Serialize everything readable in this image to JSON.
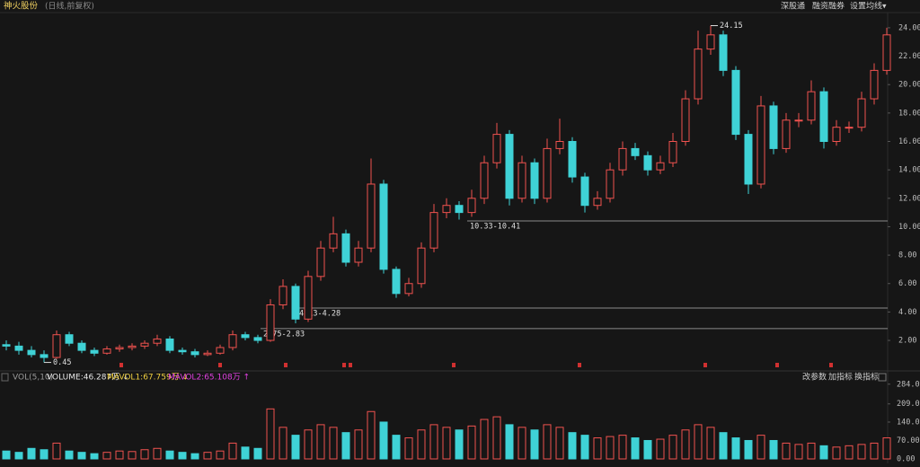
{
  "header": {
    "title": "神火股份",
    "subtitle": "(日线,前复权)",
    "menu": [
      "深股通",
      "融资融券",
      "设置均线▾"
    ]
  },
  "chart_data": [
    {
      "type": "candlestick",
      "up_color": "#f0524f",
      "down_color": "#3fd2d6",
      "open": [
        1.7,
        1.6,
        1.3,
        1.0,
        0.8,
        2.4,
        1.8,
        1.3,
        1.1,
        1.4,
        1.5,
        1.6,
        1.8,
        2.1,
        1.3,
        1.2,
        1.0,
        1.1,
        1.5,
        2.4,
        2.2,
        2.0,
        4.5,
        5.8,
        3.5,
        6.5,
        8.5,
        9.5,
        7.5,
        8.5,
        13.0,
        7.0,
        5.3,
        6.0,
        8.5,
        11.0,
        11.5,
        11.0,
        12.0,
        14.5,
        16.5,
        12.0,
        14.5,
        12.0,
        15.5,
        16.0,
        13.5,
        11.5,
        12.0,
        14.0,
        15.5,
        15.0,
        14.0,
        14.5,
        16.0,
        19.0,
        22.5,
        23.5,
        21.0,
        16.5,
        13.0,
        18.5,
        15.5,
        17.5,
        17.5,
        19.5,
        16.0,
        17.0,
        17.0,
        19.0,
        21.0
      ],
      "high": [
        2.0,
        1.9,
        1.6,
        1.3,
        2.7,
        2.6,
        2.0,
        1.5,
        1.6,
        1.7,
        1.8,
        2.0,
        2.4,
        2.3,
        1.5,
        1.4,
        1.3,
        1.7,
        2.7,
        2.6,
        2.4,
        4.9,
        6.3,
        6.0,
        6.9,
        9.0,
        10.7,
        9.8,
        9.0,
        14.8,
        13.3,
        7.2,
        6.4,
        8.9,
        11.6,
        12.0,
        11.8,
        12.6,
        15.0,
        17.3,
        16.8,
        15.0,
        14.8,
        16.2,
        17.6,
        16.3,
        13.8,
        12.5,
        14.5,
        16.0,
        15.9,
        15.3,
        15.0,
        16.6,
        19.6,
        23.8,
        24.15,
        23.8,
        21.3,
        16.8,
        19.2,
        18.8,
        18.0,
        18.0,
        20.3,
        19.8,
        17.5,
        17.4,
        19.5,
        21.5,
        24.0
      ],
      "low": [
        1.3,
        1.0,
        0.8,
        0.45,
        0.7,
        1.6,
        1.1,
        0.9,
        1.0,
        1.2,
        1.3,
        1.4,
        1.6,
        1.1,
        1.0,
        0.8,
        0.9,
        1.0,
        1.3,
        2.0,
        1.8,
        1.9,
        4.2,
        3.2,
        3.3,
        6.2,
        8.2,
        7.2,
        7.2,
        8.2,
        6.7,
        5.0,
        5.1,
        5.7,
        8.2,
        10.6,
        10.5,
        10.7,
        11.6,
        14.1,
        11.5,
        11.7,
        11.6,
        11.7,
        15.1,
        13.1,
        11.0,
        11.2,
        11.7,
        13.6,
        14.7,
        13.6,
        13.7,
        14.2,
        15.7,
        18.6,
        22.1,
        20.6,
        16.1,
        12.3,
        12.7,
        15.1,
        15.2,
        17.0,
        17.2,
        15.5,
        15.7,
        16.6,
        16.7,
        18.6,
        20.7
      ],
      "close": [
        1.6,
        1.3,
        1.0,
        0.8,
        2.4,
        1.8,
        1.3,
        1.1,
        1.4,
        1.5,
        1.6,
        1.8,
        2.1,
        1.3,
        1.2,
        1.0,
        1.1,
        1.5,
        2.4,
        2.2,
        2.0,
        4.5,
        5.8,
        3.5,
        6.5,
        8.5,
        9.5,
        7.5,
        8.5,
        13.0,
        7.0,
        5.3,
        6.0,
        8.5,
        11.0,
        11.5,
        11.0,
        12.0,
        14.5,
        16.5,
        12.0,
        14.5,
        12.0,
        15.5,
        16.0,
        13.5,
        11.5,
        12.0,
        14.0,
        15.5,
        15.0,
        14.0,
        14.5,
        16.0,
        19.0,
        22.5,
        23.5,
        21.0,
        16.5,
        13.0,
        18.5,
        15.5,
        17.5,
        17.5,
        19.5,
        16.0,
        17.0,
        17.0,
        19.0,
        21.0,
        23.5
      ],
      "ylim": [
        0.17,
        24.31
      ],
      "yticks": [
        {
          "value": 2,
          "label": "2.00"
        },
        {
          "value": 4,
          "label": "4.00"
        },
        {
          "value": 6,
          "label": "6.00"
        },
        {
          "value": 8,
          "label": "8.00"
        },
        {
          "value": 10,
          "label": "10.00"
        },
        {
          "value": 12,
          "label": "12.00"
        },
        {
          "value": 14,
          "label": "14.00"
        },
        {
          "value": 16,
          "label": "16.00"
        },
        {
          "value": 18,
          "label": "18.00"
        },
        {
          "value": 20,
          "label": "20.00"
        },
        {
          "value": 22,
          "label": "22.00"
        },
        {
          "value": 24,
          "label": "24.00"
        }
      ],
      "extremes": [
        {
          "index": 56,
          "label": "24.15"
        },
        {
          "index": 3,
          "label": "0.45"
        }
      ],
      "levels": [
        {
          "low": 10.33,
          "high": 10.41,
          "label": "10.33-10.41"
        },
        {
          "low": 4.13,
          "high": 4.28,
          "label": "4.13-4.28"
        },
        {
          "low": 2.75,
          "high": 2.83,
          "label": "2.75-2.83"
        }
      ]
    },
    {
      "type": "volume",
      "title": "VOL(5,10)",
      "legend": [
        "VOLUME:46.287万 ↓",
        "MAVOL1:67.759万 ↓",
        "MAVOL2:65.108万 ↑"
      ],
      "buttons": [
        "改参数",
        "加指标",
        "换指标"
      ],
      "values": [
        30,
        25,
        40,
        35,
        60,
        30,
        25,
        20,
        25,
        30,
        28,
        35,
        40,
        30,
        25,
        20,
        25,
        30,
        60,
        45,
        40,
        190,
        120,
        90,
        110,
        130,
        120,
        100,
        110,
        180,
        140,
        90,
        80,
        110,
        130,
        120,
        110,
        125,
        150,
        160,
        130,
        120,
        110,
        130,
        120,
        100,
        90,
        80,
        85,
        90,
        80,
        70,
        75,
        90,
        110,
        130,
        120,
        100,
        80,
        70,
        90,
        70,
        60,
        55,
        60,
        50,
        45,
        50,
        55,
        60,
        80
      ],
      "ylim": [
        0,
        290
      ],
      "yticks": [
        {
          "value": 0,
          "label": "0.00"
        },
        {
          "value": 70,
          "label": "70.00"
        },
        {
          "value": 140,
          "label": "140.00"
        },
        {
          "value": 209,
          "label": "209.00"
        },
        {
          "value": 284,
          "label": "284.00"
        }
      ]
    }
  ]
}
